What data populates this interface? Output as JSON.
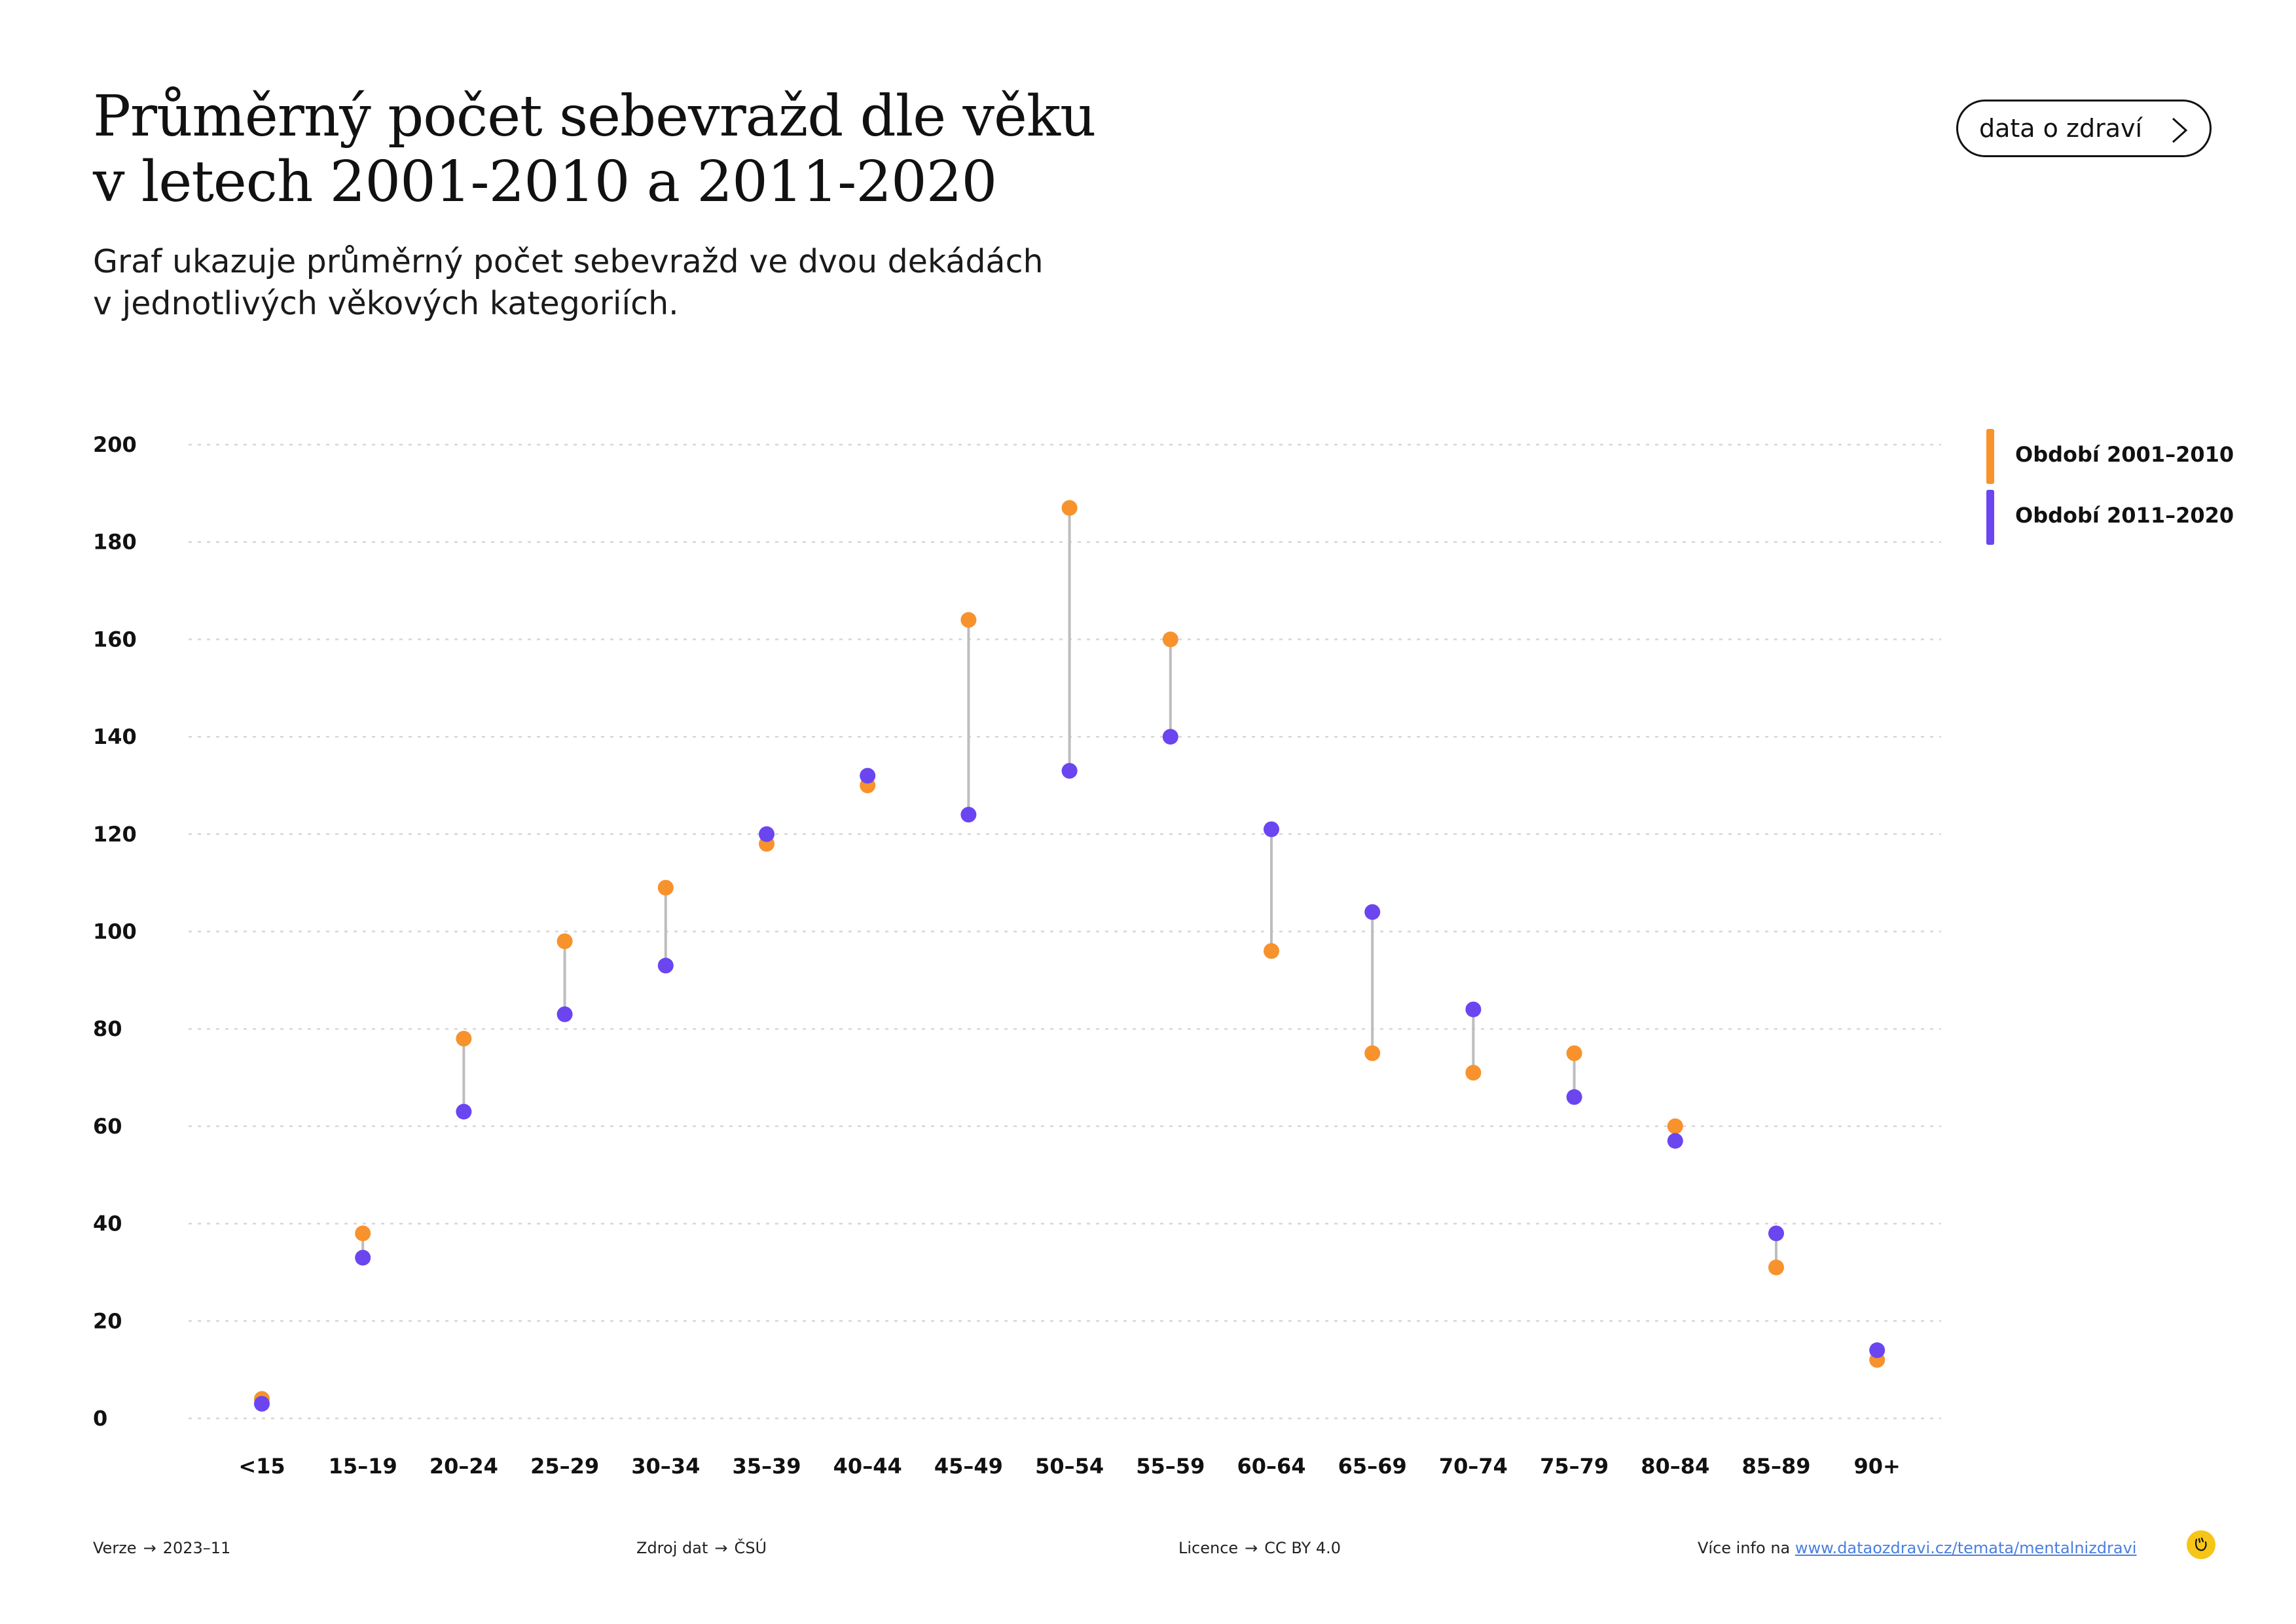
{
  "header": {
    "title_lines": [
      "Průměrný počet sebevražd dle věku",
      "v letech 2001-2010 a 2011-2020"
    ],
    "subtitle_lines": [
      "Graf ukazuje průměrný počet sebevražd ve dvou dekádách",
      "v jednotlivých věkových kategoriích."
    ],
    "brand_button": "data o zdraví",
    "brand_icon": "chevron-right-icon"
  },
  "chart_data": {
    "type": "scatter",
    "subtype": "dumbbell",
    "categories": [
      "<15",
      "15–19",
      "20–24",
      "25–29",
      "30–34",
      "35–39",
      "40–44",
      "45–49",
      "50–54",
      "55–59",
      "60–64",
      "65–69",
      "70–74",
      "75–79",
      "80–84",
      "85–89",
      "90+"
    ],
    "series": [
      {
        "name": "Období 2001–2010",
        "color": "#f7922d",
        "values": [
          4,
          38,
          78,
          98,
          109,
          118,
          130,
          164,
          187,
          160,
          96,
          75,
          71,
          75,
          60,
          31,
          12
        ]
      },
      {
        "name": "Období 2011–2020",
        "color": "#6a45f0",
        "values": [
          3,
          33,
          63,
          83,
          93,
          120,
          132,
          124,
          133,
          140,
          121,
          104,
          84,
          66,
          57,
          38,
          14
        ]
      }
    ],
    "connector_color": "#bdbdbd",
    "ylim": [
      0,
      200
    ],
    "yticks": [
      0,
      20,
      40,
      60,
      80,
      100,
      120,
      140,
      160,
      180,
      200
    ],
    "grid": true,
    "legend_position": "top-right"
  },
  "footer": {
    "version_label": "Verze",
    "version_value": "2023–11",
    "source_label": "Zdroj dat",
    "source_value": "ČSÚ",
    "license_label": "Licence",
    "license_value": "CC BY 4.0",
    "info_label": "Více info na",
    "info_link": "www.dataozdravi.cz/temata/mentalnizdravi",
    "arrow": "→"
  }
}
